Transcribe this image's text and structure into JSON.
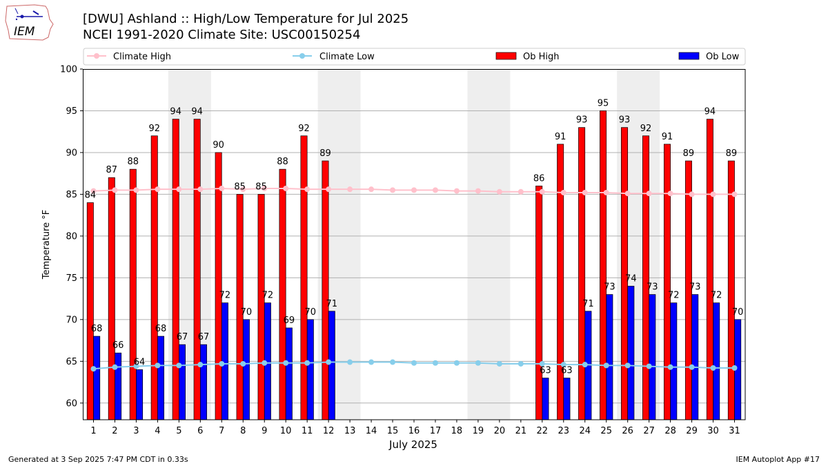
{
  "header": {
    "title_line1": "[DWU] Ashland :: High/Low Temperature for Jul 2025",
    "title_line2": "NCEI 1991-2020 Climate Site: USC00150254",
    "logo_text": "IEM"
  },
  "footer": {
    "left": "Generated at 3 Sep 2025 7:47 PM CDT in 0.33s",
    "right": "IEM Autoplot App #17"
  },
  "colors": {
    "ob_high": "#ff0000",
    "ob_low": "#0000ff",
    "climate_high": "#ffc0cb",
    "climate_low": "#87ceeb",
    "weekend_shade": "#eeeeee",
    "grid": "#b0b0b0",
    "logo": "#cc2222"
  },
  "chart_data": {
    "type": "bar",
    "xlabel": "July 2025",
    "ylabel": "Temperature °F",
    "ylim": [
      58,
      100
    ],
    "xlim": [
      0.5,
      31.5
    ],
    "yticks": [
      60,
      65,
      70,
      75,
      80,
      85,
      90,
      95,
      100
    ],
    "grid": "horizontal",
    "legend_placement": "top",
    "categories": [
      "1",
      "2",
      "3",
      "4",
      "5",
      "6",
      "7",
      "8",
      "9",
      "10",
      "11",
      "12",
      "13",
      "14",
      "15",
      "16",
      "17",
      "18",
      "19",
      "20",
      "21",
      "22",
      "23",
      "24",
      "25",
      "26",
      "27",
      "28",
      "29",
      "30",
      "31"
    ],
    "shaded_days": [
      [
        5,
        6
      ],
      [
        12,
        13
      ],
      [
        19,
        20
      ],
      [
        26,
        27
      ]
    ],
    "series": [
      {
        "name": "Ob High",
        "kind": "bar",
        "color": "#ff0000",
        "values": [
          84,
          87,
          88,
          92,
          94,
          94,
          90,
          85,
          85,
          88,
          92,
          89,
          null,
          null,
          null,
          null,
          null,
          null,
          null,
          null,
          null,
          86,
          91,
          93,
          95,
          93,
          92,
          91,
          89,
          94,
          89
        ]
      },
      {
        "name": "Ob Low",
        "kind": "bar",
        "color": "#0000ff",
        "values": [
          68,
          66,
          64,
          68,
          67,
          67,
          72,
          70,
          72,
          69,
          70,
          71,
          null,
          null,
          null,
          null,
          null,
          null,
          null,
          null,
          null,
          63,
          63,
          71,
          73,
          74,
          73,
          72,
          73,
          72,
          70
        ]
      },
      {
        "name": "Climate High",
        "kind": "line",
        "color": "#ffc0cb",
        "values": [
          85.4,
          85.5,
          85.5,
          85.6,
          85.6,
          85.6,
          85.7,
          85.6,
          85.7,
          85.7,
          85.6,
          85.6,
          85.6,
          85.6,
          85.5,
          85.5,
          85.5,
          85.4,
          85.4,
          85.3,
          85.3,
          85.3,
          85.2,
          85.2,
          85.2,
          85.1,
          85.1,
          85.1,
          85.0,
          85.0,
          85.0
        ]
      },
      {
        "name": "Climate Low",
        "kind": "line",
        "color": "#87ceeb",
        "values": [
          64.1,
          64.3,
          64.4,
          64.5,
          64.5,
          64.6,
          64.7,
          64.7,
          64.8,
          64.8,
          64.8,
          64.9,
          64.9,
          64.9,
          64.9,
          64.8,
          64.8,
          64.8,
          64.8,
          64.7,
          64.7,
          64.7,
          64.6,
          64.6,
          64.5,
          64.5,
          64.4,
          64.3,
          64.3,
          64.2,
          64.2
        ]
      }
    ]
  }
}
